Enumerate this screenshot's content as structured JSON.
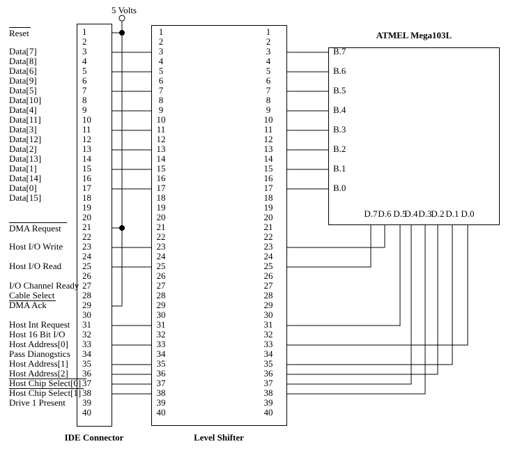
{
  "power": {
    "label": "5 Volts"
  },
  "ide": {
    "caption": "IDE Connector"
  },
  "level_shifter": {
    "caption": "Level Shifter"
  },
  "mcu": {
    "title": "ATMEL Mega103L",
    "b_ports": [
      "B.7",
      "B.6",
      "B.5",
      "B.4",
      "B.3",
      "B.2",
      "B.1",
      "B.0"
    ],
    "d_ports": [
      "D.7",
      "D.6",
      "D.5",
      "D.4",
      "D.3",
      "D.2",
      "D.1",
      "D.0"
    ]
  },
  "pins": [
    1,
    2,
    3,
    4,
    5,
    6,
    7,
    8,
    9,
    10,
    11,
    12,
    13,
    14,
    15,
    16,
    17,
    18,
    19,
    20,
    21,
    22,
    23,
    24,
    25,
    26,
    27,
    28,
    29,
    30,
    31,
    32,
    33,
    34,
    35,
    36,
    37,
    38,
    39,
    40
  ],
  "signals": [
    {
      "pin": 1,
      "label": "Reset",
      "decoration": "overline",
      "extend": 2
    },
    {
      "pin": 3,
      "label": "Data[7]"
    },
    {
      "pin": 4,
      "label": "Data[8]"
    },
    {
      "pin": 5,
      "label": "Data[6]"
    },
    {
      "pin": 6,
      "label": "Data[9]"
    },
    {
      "pin": 7,
      "label": "Data[5]"
    },
    {
      "pin": 8,
      "label": "Data[10]"
    },
    {
      "pin": 9,
      "label": "Data[4]"
    },
    {
      "pin": 10,
      "label": "Data[11]"
    },
    {
      "pin": 11,
      "label": "Data[3]"
    },
    {
      "pin": 12,
      "label": "Data[12]"
    },
    {
      "pin": 13,
      "label": "Data[2]"
    },
    {
      "pin": 14,
      "label": "Data[13]"
    },
    {
      "pin": 15,
      "label": "Data[1]"
    },
    {
      "pin": 16,
      "label": "Data[14]"
    },
    {
      "pin": 17,
      "label": "Data[0]"
    },
    {
      "pin": 18,
      "label": "Data[15]"
    },
    {
      "pin": 21,
      "label": "DMA Request",
      "decoration": "overline",
      "extend": 8
    },
    {
      "pin": 23,
      "label": "Host I/O Write"
    },
    {
      "pin": 25,
      "label": "Host I/O Read"
    },
    {
      "pin": 27,
      "label": "I/O Channel Ready"
    },
    {
      "pin": 28,
      "label": "Cable Select",
      "decoration": "underline",
      "extend": 2
    },
    {
      "pin": 29,
      "label": "DMA Ack"
    },
    {
      "pin": 31,
      "label": "Host Int Request"
    },
    {
      "pin": 32,
      "label": "Host 16 Bit I/O"
    },
    {
      "pin": 33,
      "label": "Host Address[0]"
    },
    {
      "pin": 34,
      "label": "Pass Dianogstics"
    },
    {
      "pin": 35,
      "label": "Host Address[1]"
    },
    {
      "pin": 36,
      "label": "Host Address[2]",
      "decoration": "underline",
      "extend": 26
    },
    {
      "pin": 37,
      "label": "Host Chip Select[0]",
      "decoration": "underline",
      "extend": 4
    },
    {
      "pin": 38,
      "label": "Host Chip Select[1]"
    },
    {
      "pin": 39,
      "label": "Drive 1 Present"
    }
  ],
  "connections": {
    "ide_to_shifter_pins": [
      3,
      5,
      7,
      9,
      11,
      13,
      15,
      17,
      23,
      25,
      31,
      33,
      35,
      36,
      37,
      38
    ],
    "power_tap_pins": [
      1,
      21
    ],
    "power_end_pin": 29,
    "shifter_to_b_ports": [
      {
        "pin": 3,
        "port": "B.7"
      },
      {
        "pin": 5,
        "port": "B.6"
      },
      {
        "pin": 7,
        "port": "B.5"
      },
      {
        "pin": 9,
        "port": "B.4"
      },
      {
        "pin": 11,
        "port": "B.3"
      },
      {
        "pin": 13,
        "port": "B.2"
      },
      {
        "pin": 15,
        "port": "B.1"
      },
      {
        "pin": 17,
        "port": "B.0"
      }
    ],
    "shifter_to_d_ports": [
      {
        "pin": 23,
        "port": "D.6"
      },
      {
        "pin": 25,
        "port": "D.7"
      },
      {
        "pin": 31,
        "port": "D.5"
      },
      {
        "pin": 33,
        "port": "D.0"
      },
      {
        "pin": 35,
        "port": "D.1"
      },
      {
        "pin": 36,
        "port": "D.2"
      },
      {
        "pin": 37,
        "port": "D.4"
      },
      {
        "pin": 38,
        "port": "D.3"
      }
    ]
  }
}
